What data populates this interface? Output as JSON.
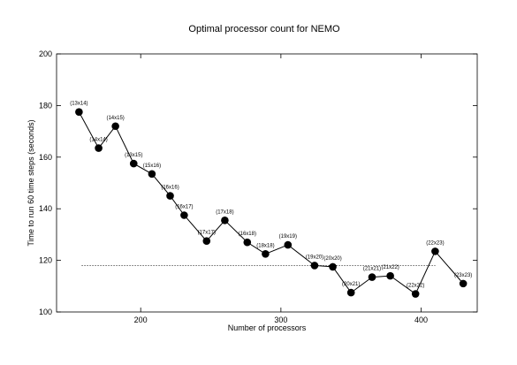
{
  "chart_data": {
    "type": "line",
    "title": "Optimal processor count for NEMO",
    "xlabel": "Number of processors",
    "ylabel": "Time to run 60 time steps (seconds)",
    "xlim": [
      140,
      440
    ],
    "ylim": [
      100,
      200
    ],
    "xticks": [
      200,
      300,
      400
    ],
    "yticks": [
      100,
      120,
      140,
      160,
      180,
      200
    ],
    "grid": false,
    "legend": "none",
    "series": [
      {
        "points": [
          {
            "x": 156,
            "y": 177.5,
            "label": "(13x14)"
          },
          {
            "x": 170,
            "y": 163.5,
            "label": "(14x14)"
          },
          {
            "x": 182,
            "y": 172,
            "label": "(14x15)"
          },
          {
            "x": 195,
            "y": 157.5,
            "label": "(13x15)"
          },
          {
            "x": 208,
            "y": 153.5,
            "label": "(15x16)"
          },
          {
            "x": 221,
            "y": 145,
            "label": "(16x16)"
          },
          {
            "x": 231,
            "y": 137.5,
            "label": "(16x17)"
          },
          {
            "x": 247,
            "y": 127.5,
            "label": "(17x17)"
          },
          {
            "x": 260,
            "y": 135.5,
            "label": "(17x18)"
          },
          {
            "x": 276,
            "y": 127,
            "label": "(16x18)"
          },
          {
            "x": 289,
            "y": 122.5,
            "label": "(18x18)"
          },
          {
            "x": 305,
            "y": 126,
            "label": "(19x19)"
          },
          {
            "x": 324,
            "y": 118,
            "label": "(19x20)"
          },
          {
            "x": 337,
            "y": 117.5,
            "label": "(20x20)"
          },
          {
            "x": 350,
            "y": 107.5,
            "label": "(20x21)"
          },
          {
            "x": 365,
            "y": 113.5,
            "label": "(21x21)"
          },
          {
            "x": 378,
            "y": 114,
            "label": "(21x22)"
          },
          {
            "x": 396,
            "y": 107,
            "label": "(22x22)"
          },
          {
            "x": 410,
            "y": 123.5,
            "label": "(22x23)"
          },
          {
            "x": 430,
            "y": 111,
            "label": "(23x23)"
          }
        ]
      }
    ],
    "reference_line": {
      "y": 118,
      "x_from": 158,
      "x_to": 410,
      "style": "dotted"
    }
  }
}
